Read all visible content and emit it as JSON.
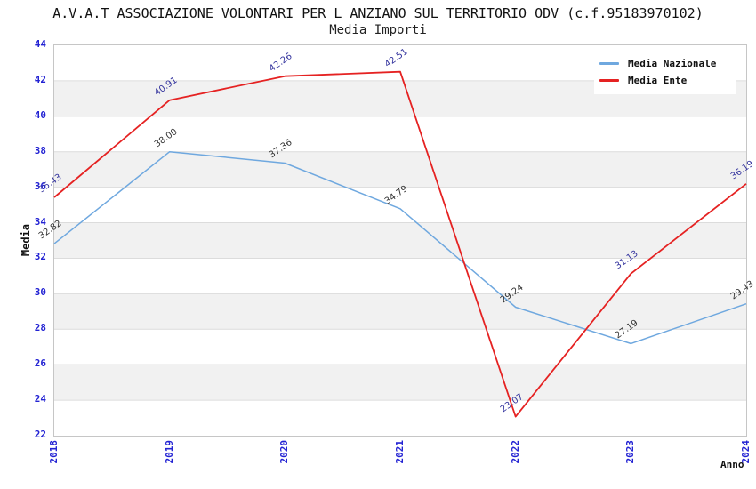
{
  "header": {
    "title": "A.V.A.T ASSOCIAZIONE VOLONTARI PER L ANZIANO SUL TERRITORIO ODV (c.f.95183970102)",
    "subtitle": "Media Importi"
  },
  "chart_data": {
    "type": "line",
    "title": "A.V.A.T ASSOCIAZIONE VOLONTARI PER L ANZIANO SUL TERRITORIO ODV (c.f.95183970102)",
    "subtitle": "Media Importi",
    "xlabel": "Anno",
    "ylabel": "Media",
    "x": [
      "2018",
      "2019",
      "2020",
      "2021",
      "2022",
      "2023",
      "2024"
    ],
    "series": [
      {
        "name": "Media Nazionale",
        "color": "#6FA8DF",
        "label_color": "#333333",
        "values": [
          32.82,
          38.0,
          37.36,
          34.79,
          29.24,
          27.19,
          29.43
        ]
      },
      {
        "name": "Media Ente",
        "color": "#E52222",
        "label_color": "#34349E",
        "values": [
          35.43,
          40.91,
          42.26,
          42.51,
          23.07,
          31.13,
          36.19
        ]
      }
    ],
    "ylim": [
      22,
      44
    ],
    "ytick_step": 2,
    "yticks": [
      22,
      24,
      26,
      28,
      30,
      32,
      34,
      36,
      38,
      40,
      42,
      44
    ],
    "grid": true,
    "banded_background": true,
    "legend_position": "top-right",
    "colors": {
      "tick_label": "#2323D3",
      "band": "#F1F1F1",
      "gridline": "#DCDCDC",
      "plot_border": "#C6C6C6",
      "background": "#FFFFFF"
    }
  },
  "legend": {
    "items": [
      {
        "label": "Media Nazionale",
        "color": "#6FA8DF"
      },
      {
        "label": "Media Ente",
        "color": "#E52222"
      }
    ]
  }
}
